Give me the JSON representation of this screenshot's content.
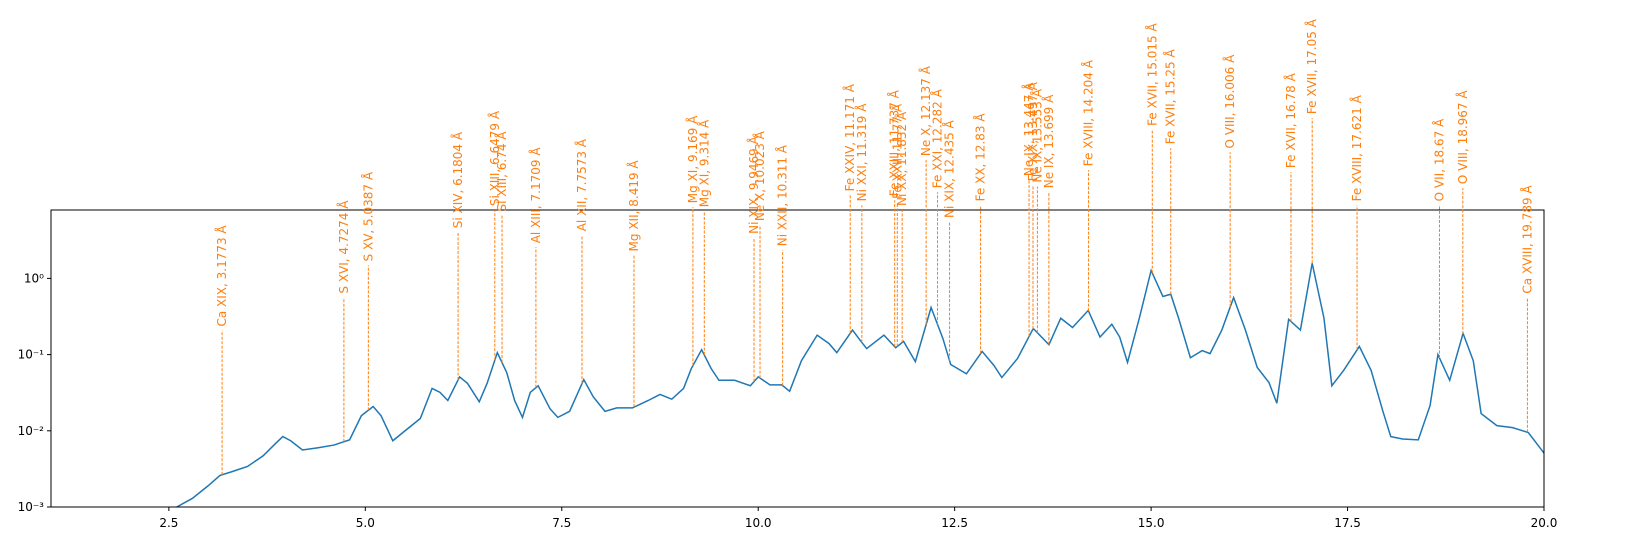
{
  "chart_data": {
    "type": "line",
    "color": "#1f77b4",
    "annotation_color": "#ff7f0e",
    "log_y": true,
    "xlim": [
      1,
      20
    ],
    "ylim": [
      0.001,
      7.9
    ],
    "xticks": [
      {
        "value": 2.5,
        "label": "2.5"
      },
      {
        "value": 5,
        "label": "5.0"
      },
      {
        "value": 7.5,
        "label": "7.5"
      },
      {
        "value": 10,
        "label": "10.0"
      },
      {
        "value": 12.5,
        "label": "12.5"
      },
      {
        "value": 15,
        "label": "15.0"
      },
      {
        "value": 17.5,
        "label": "17.5"
      },
      {
        "value": 20,
        "label": "20.0"
      }
    ],
    "yticks": [
      {
        "value": 0.001,
        "label": "10⁻³"
      },
      {
        "value": 0.01,
        "label": "10⁻²"
      },
      {
        "value": 0.1,
        "label": "10⁻¹"
      },
      {
        "value": 1,
        "label": "10⁰"
      }
    ],
    "x": [
      2.6,
      2.8,
      3.0,
      3.15,
      3.3,
      3.5,
      3.7,
      3.85,
      3.95,
      4.05,
      4.2,
      4.4,
      4.6,
      4.8,
      4.95,
      5.1,
      5.2,
      5.35,
      5.5,
      5.7,
      5.85,
      5.95,
      6.05,
      6.2,
      6.3,
      6.45,
      6.55,
      6.68,
      6.8,
      6.9,
      7.0,
      7.1,
      7.2,
      7.35,
      7.45,
      7.6,
      7.78,
      7.9,
      8.05,
      8.2,
      8.4,
      8.6,
      8.75,
      8.9,
      9.05,
      9.15,
      9.28,
      9.4,
      9.5,
      9.7,
      9.9,
      10.0,
      10.15,
      10.3,
      10.4,
      10.55,
      10.75,
      10.9,
      11.0,
      11.2,
      11.3,
      11.38,
      11.6,
      11.75,
      11.85,
      12.0,
      12.2,
      12.35,
      12.45,
      12.65,
      12.85,
      13.0,
      13.1,
      13.3,
      13.5,
      13.7,
      13.85,
      14.0,
      14.2,
      14.35,
      14.5,
      14.6,
      14.7,
      14.85,
      15.0,
      15.15,
      15.25,
      15.35,
      15.5,
      15.65,
      15.75,
      15.9,
      16.05,
      16.2,
      16.35,
      16.5,
      16.6,
      16.75,
      16.9,
      17.05,
      17.2,
      17.3,
      17.45,
      17.65,
      17.8,
      17.95,
      18.05,
      18.2,
      18.4,
      18.55,
      18.65,
      18.8,
      18.97,
      19.1,
      19.2,
      19.4,
      19.6,
      19.8,
      20.0
    ],
    "values": [
      0.001,
      0.0013,
      0.0019,
      0.0026,
      0.0029,
      0.0034,
      0.0047,
      0.0067,
      0.0084,
      0.0074,
      0.0056,
      0.006,
      0.0065,
      0.0076,
      0.0158,
      0.0208,
      0.0158,
      0.0074,
      0.0099,
      0.0145,
      0.036,
      0.032,
      0.025,
      0.051,
      0.042,
      0.024,
      0.042,
      0.106,
      0.058,
      0.025,
      0.015,
      0.032,
      0.039,
      0.0195,
      0.015,
      0.018,
      0.047,
      0.028,
      0.018,
      0.02,
      0.02,
      0.025,
      0.03,
      0.026,
      0.036,
      0.066,
      0.116,
      0.066,
      0.046,
      0.046,
      0.039,
      0.051,
      0.04,
      0.04,
      0.033,
      0.083,
      0.18,
      0.14,
      0.106,
      0.21,
      0.153,
      0.12,
      0.18,
      0.123,
      0.149,
      0.081,
      0.415,
      0.163,
      0.074,
      0.056,
      0.11,
      0.072,
      0.05,
      0.089,
      0.22,
      0.135,
      0.3,
      0.227,
      0.38,
      0.17,
      0.25,
      0.17,
      0.079,
      0.3,
      1.27,
      0.58,
      0.62,
      0.3,
      0.091,
      0.113,
      0.103,
      0.21,
      0.56,
      0.21,
      0.068,
      0.043,
      0.023,
      0.29,
      0.21,
      1.58,
      0.3,
      0.039,
      0.062,
      0.128,
      0.062,
      0.018,
      0.0084,
      0.0078,
      0.0076,
      0.0214,
      0.1,
      0.046,
      0.19,
      0.083,
      0.0168,
      0.0117,
      0.011,
      0.0095,
      0.0051
    ],
    "annotations": [
      {
        "label": "Ca XIX, 3.1773 Å",
        "x": 3.1773,
        "y": 0.207
      },
      {
        "label": "S XVI, 4.7274 Å",
        "x": 4.7274,
        "y": 0.56
      },
      {
        "label": "S XV, 5.0387 Å",
        "x": 5.0387,
        "y": 1.48
      },
      {
        "label": "Si XIV, 6.1804 Å",
        "x": 6.1804,
        "y": 4.03
      },
      {
        "label": "Si XIII, 6.6479 Å",
        "x": 6.6479,
        "y": 7.86
      },
      {
        "label": "Si XIII, 6.74 Å",
        "x": 6.74,
        "y": 6.7
      },
      {
        "label": "Al XIII, 7.1709 Å",
        "x": 7.1709,
        "y": 2.56
      },
      {
        "label": "Al XII, 7.7573 Å",
        "x": 7.7573,
        "y": 3.68
      },
      {
        "label": "Mg XII, 8.419 Å",
        "x": 8.419,
        "y": 2.0
      },
      {
        "label": "Mg XI, 9.169 Å",
        "x": 9.169,
        "y": 8.6
      },
      {
        "label": "Mg XI, 9.314 Å",
        "x": 9.314,
        "y": 7.6
      },
      {
        "label": "Ni XIX, 9.9469 Å",
        "x": 9.9469,
        "y": 3.4
      },
      {
        "label": "Ne X, 10.023 Å",
        "x": 10.023,
        "y": 5.0
      },
      {
        "label": "Ni XXII, 10.311 Å",
        "x": 10.311,
        "y": 2.34
      },
      {
        "label": "Fe XXIV, 11.171 Å",
        "x": 11.171,
        "y": 12.3
      },
      {
        "label": "Ni XXI, 11.319 Å",
        "x": 11.319,
        "y": 9.1
      },
      {
        "label": "Fe XXIII, 11.737 Å",
        "x": 11.737,
        "y": 10.6
      },
      {
        "label": "Fe XXII, 11.77 Å",
        "x": 11.77,
        "y": 9.8
      },
      {
        "label": "Ni XX, 11.832 Å",
        "x": 11.832,
        "y": 7.9
      },
      {
        "label": "Ne X, 12.137 Å",
        "x": 12.137,
        "y": 35.7
      },
      {
        "label": "Fe XXI, 12.282 Å",
        "x": 12.282,
        "y": 13.5
      },
      {
        "label": "Ni XIX, 12.435 Å",
        "x": 12.435,
        "y": 5.5
      },
      {
        "label": "Fe XX, 12.83 Å",
        "x": 12.83,
        "y": 9.1
      },
      {
        "label": "Ne IX, 13.447 Å",
        "x": 13.447,
        "y": 19.5
      },
      {
        "label": "Fe XIX, 13.497 Å",
        "x": 13.497,
        "y": 16.7
      },
      {
        "label": "Ne IX, 13.553 Å",
        "x": 13.553,
        "y": 16.0
      },
      {
        "label": "Ne IX, 13.699 Å",
        "x": 13.699,
        "y": 13.5
      },
      {
        "label": "Fe XVIII, 14.204 Å",
        "x": 14.204,
        "y": 26.3
      },
      {
        "label": "Fe XVII, 15.015 Å",
        "x": 15.015,
        "y": 88.9
      },
      {
        "label": "Fe XVII, 15.25 Å",
        "x": 15.25,
        "y": 51
      },
      {
        "label": "O VIII, 16.006 Å",
        "x": 16.006,
        "y": 45
      },
      {
        "label": "Fe XVII, 16.78 Å",
        "x": 16.78,
        "y": 24.8
      },
      {
        "label": "Fe XVII, 17.05 Å",
        "x": 17.05,
        "y": 127
      },
      {
        "label": "Fe XVIII, 17.621 Å",
        "x": 17.621,
        "y": 9.1
      },
      {
        "label": "O VII, 18.67 Å",
        "x": 18.67,
        "y": 9.1
      },
      {
        "label": "O VIII, 18.967 Å",
        "x": 18.967,
        "y": 15.3
      },
      {
        "label": "Ca XVIII, 19.789 Å",
        "x": 19.789,
        "y": 0.56
      }
    ]
  }
}
